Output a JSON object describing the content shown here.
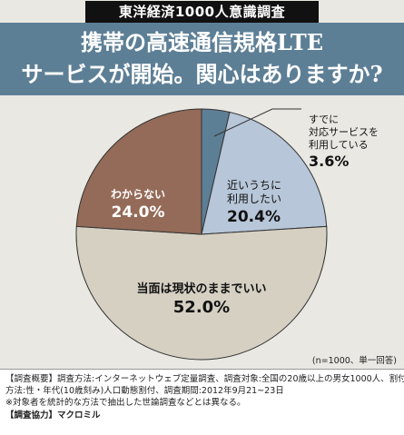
{
  "header": {
    "survey_tag": "東洋経済1000人意識調査",
    "title_line1": "携帯の高速通信規格LTE",
    "title_line2": "サービスが開始。関心はありますか?"
  },
  "chart_data": {
    "type": "pie",
    "title": "携帯の高速通信規格LTEサービスが開始。関心はありますか?",
    "slices": [
      {
        "label": "すでに対応サービスを利用している",
        "label_lines": [
          "すでに",
          "対応サービスを",
          "利用している"
        ],
        "value": 3.6,
        "value_text": "3.6%",
        "color": "#5d7f96"
      },
      {
        "label": "近いうちに利用したい",
        "label_lines": [
          "近いうちに",
          "利用したい"
        ],
        "value": 20.4,
        "value_text": "20.4%",
        "color": "#b7c6d8"
      },
      {
        "label": "当面は現状のままでいい",
        "label_lines": [
          "当面は現状のままでいい"
        ],
        "value": 52.0,
        "value_text": "52.0%",
        "color": "#d6d0c3"
      },
      {
        "label": "わからない",
        "label_lines": [
          "わからない"
        ],
        "value": 24.0,
        "value_text": "24.0%",
        "color": "#946b58"
      }
    ],
    "sample_note": "(n=1000、単一回答)"
  },
  "footer": {
    "line1": "【調査概要】調査方法:インターネットウェブ定量調査、調査対象:全国の20歳以上の男女1000人、割付",
    "line2": "方法:性・年代(10歳刻み)人口動態割付、調査期間:2012年9月21~23日",
    "line3": "※対象者を統計的な方法で抽出した世論調査などとは異なる。",
    "line4": "【調査協力】マクロミル"
  }
}
